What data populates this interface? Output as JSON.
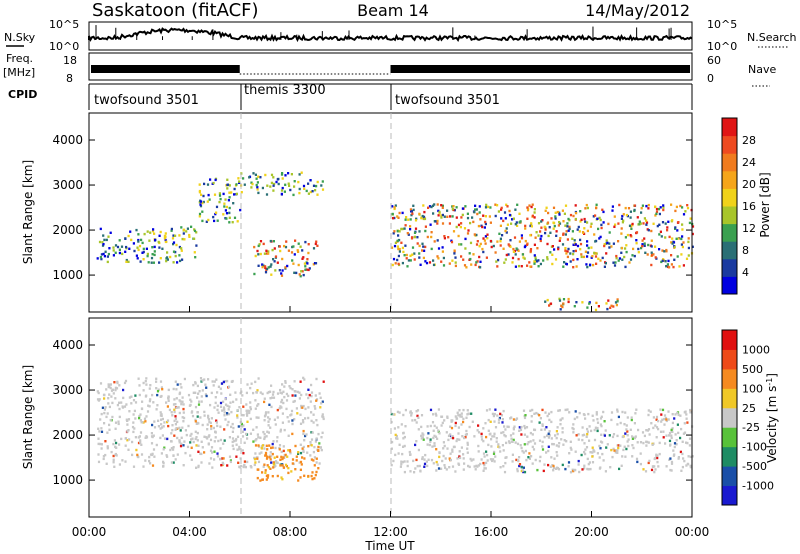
{
  "header": {
    "station": "Saskatoon (fitACF)",
    "beam": "Beam 14",
    "date": "14/May/2012"
  },
  "top_panels": {
    "left_labels": {
      "nsky": "N.Sky",
      "freq_top": "Freq.",
      "freq_unit": "[MHz]",
      "cpid": "CPID"
    },
    "right_labels": {
      "nsearch": "N.Search",
      "nave": "Nave"
    },
    "nsky_ticks": [
      "10^5",
      "10^0"
    ],
    "freq_ticks": [
      "18",
      "8"
    ],
    "nave_ticks": [
      "60",
      "0"
    ],
    "cpid_segments": [
      {
        "label": "twofsound 3501"
      },
      {
        "label": "themis 3300"
      },
      {
        "label": "twofsound 3501"
      }
    ]
  },
  "chart_data": [
    {
      "type": "heatmap",
      "ylabel": "Slant Range [km]",
      "y_ticks": [
        "4000",
        "3000",
        "2000",
        "1000"
      ],
      "ylim": [
        180,
        4600
      ],
      "xlim_hours": [
        0,
        24
      ],
      "colorbar": {
        "title": "Power [dB]",
        "ticks": [
          "28",
          "24",
          "20",
          "16",
          "12",
          "8",
          "4"
        ],
        "colors": [
          "#0000e0",
          "#1a3aa0",
          "#2a6f75",
          "#3aa050",
          "#a8c52a",
          "#f0d21a",
          "#f5a51a",
          "#f07b1e",
          "#ee4a20",
          "#e01515"
        ]
      },
      "regions": [
        {
          "t": [
            0.3,
            4.3
          ],
          "r": [
            1300,
            2100
          ],
          "level": "medium"
        },
        {
          "t": [
            4.3,
            6.0
          ],
          "r": [
            2200,
            3200
          ],
          "level": "medium"
        },
        {
          "t": [
            6.0,
            9.3
          ],
          "r": [
            2800,
            3300
          ],
          "level": "medium"
        },
        {
          "t": [
            6.5,
            9.1
          ],
          "r": [
            1000,
            1800
          ],
          "level": "strong"
        },
        {
          "t": [
            12.0,
            24.0
          ],
          "r": [
            1200,
            2600
          ],
          "level": "strong"
        },
        {
          "t": [
            18.0,
            21.0
          ],
          "r": [
            250,
            500
          ],
          "level": "strong"
        }
      ]
    },
    {
      "type": "heatmap",
      "ylabel": "Slant Range [km]",
      "y_ticks": [
        "4000",
        "3000",
        "2000",
        "1000"
      ],
      "ylim": [
        180,
        4600
      ],
      "xlim_hours": [
        0,
        24
      ],
      "xlabel": "Time UT",
      "x_ticks": [
        "00:00",
        "04:00",
        "08:00",
        "12:00",
        "16:00",
        "20:00",
        "00:00"
      ],
      "colorbar": {
        "title": "Velocity [m s",
        "title_exp": "-1",
        "title_end": "]",
        "ticks": [
          "1000",
          "500",
          "100",
          "25",
          "-25",
          "-100",
          "-500",
          "-1000"
        ],
        "colors": [
          "#1a1ad0",
          "#1a4fa8",
          "#1e8c64",
          "#58c23a",
          "#c8c8c8",
          "#f0c828",
          "#f58a20",
          "#ee4a18",
          "#e01010"
        ]
      },
      "regions": [
        {
          "t": [
            0.3,
            9.3
          ],
          "r": [
            1300,
            3300
          ],
          "level": "ground"
        },
        {
          "t": [
            6.5,
            9.1
          ],
          "r": [
            1000,
            1800
          ],
          "level": "negative"
        },
        {
          "t": [
            12.0,
            24.0
          ],
          "r": [
            1200,
            2600
          ],
          "level": "ground"
        }
      ]
    }
  ]
}
